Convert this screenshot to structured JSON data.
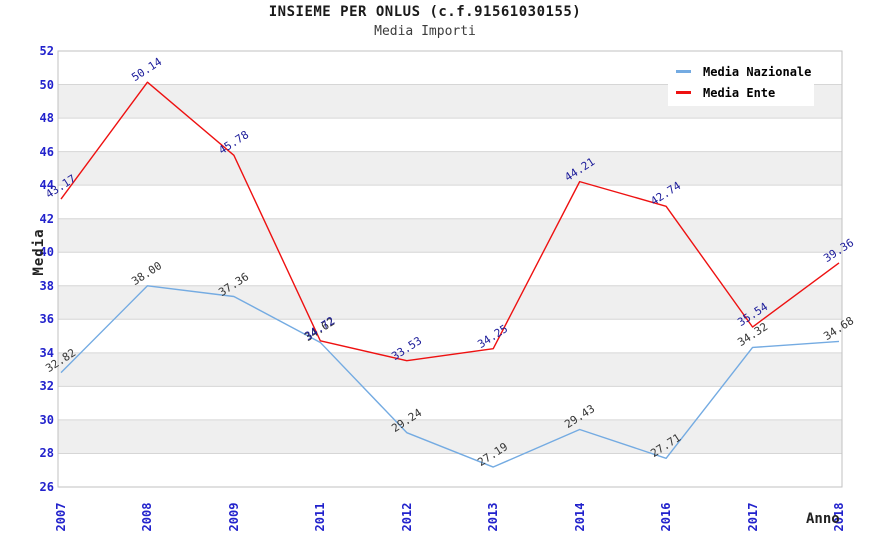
{
  "chart_data": {
    "type": "line",
    "title": "INSIEME PER ONLUS (c.f.91561030155)",
    "subtitle": "Media Importi",
    "xlabel": "Anno",
    "ylabel": "Media",
    "x": [
      "2007",
      "2008",
      "2009",
      "2011",
      "2012",
      "2013",
      "2014",
      "2016",
      "2017",
      "2018"
    ],
    "series": [
      {
        "name": "Media Nazionale",
        "color": "#74ABE2",
        "label_color": "#333333",
        "values": [
          32.82,
          38.0,
          37.36,
          34.62,
          29.24,
          27.19,
          29.43,
          27.71,
          34.32,
          34.68
        ]
      },
      {
        "name": "Media Ente",
        "color": "#EE1111",
        "label_color": "#1A1A99",
        "values": [
          43.17,
          50.14,
          45.78,
          34.72,
          33.53,
          34.25,
          44.21,
          42.74,
          35.54,
          39.36
        ]
      }
    ],
    "ylim": [
      26,
      52
    ],
    "ytick_step": 2,
    "grid": true,
    "band_colors": [
      "#FFFFFF",
      "#EFEFEF"
    ],
    "grid_color": "#D6D6D6",
    "plot_border_color": "#C2C2C2",
    "tick_label_color": "#2222CC",
    "legend_position": "top-right"
  }
}
